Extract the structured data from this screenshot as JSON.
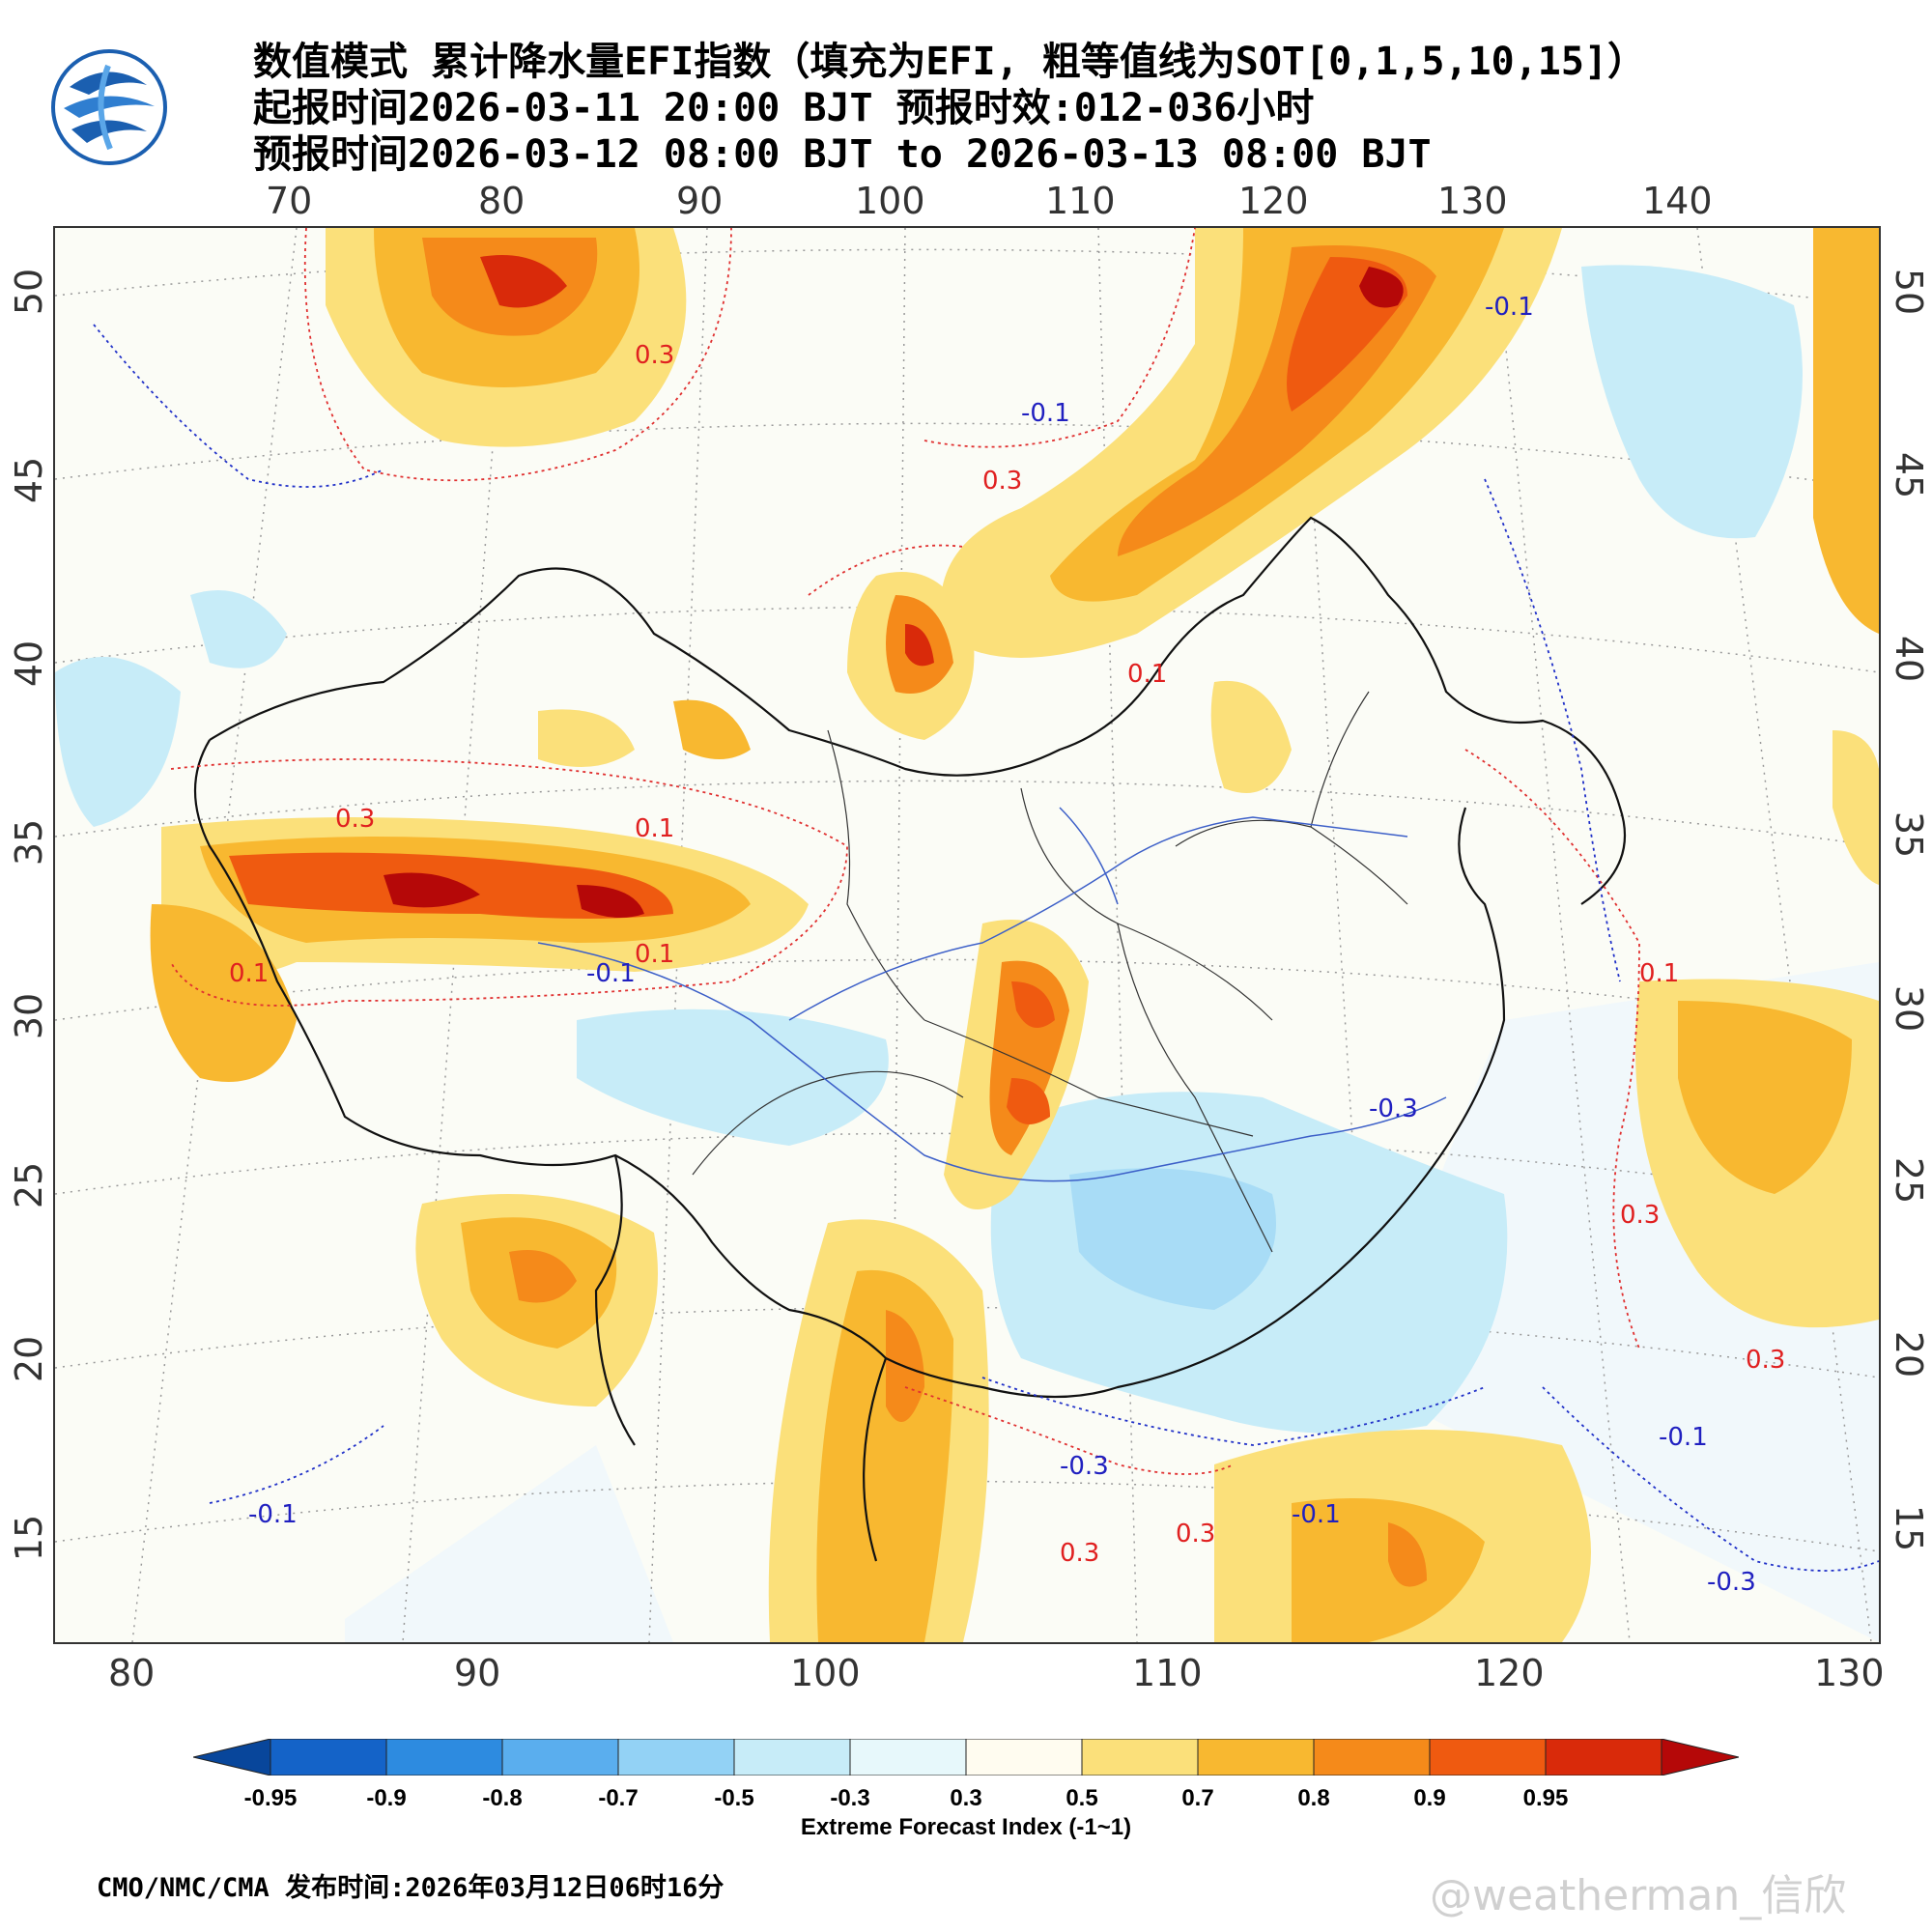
{
  "header": {
    "title_line1": "数值模式 累计降水量EFI指数（填充为EFI, 粗等值线为SOT[0,1,5,10,15]）",
    "title_line2": "起报时间2026-03-11 20:00 BJT 预报时效:012-036小时",
    "title_line3": "预报时间2026-03-12 08:00 BJT to 2026-03-13 08:00 BJT"
  },
  "map": {
    "top_lon_labels": [
      "70",
      "80",
      "90",
      "100",
      "110",
      "120",
      "130",
      "140"
    ],
    "bottom_lon_labels": [
      "80",
      "90",
      "100",
      "110",
      "120",
      "130"
    ],
    "left_lat_labels": [
      "50",
      "45",
      "40",
      "35",
      "30",
      "25",
      "20",
      "15"
    ],
    "right_lat_labels": [
      "50",
      "45",
      "40",
      "35",
      "30",
      "25",
      "20",
      "15"
    ],
    "contour_labels": [
      "0.1",
      "0.3",
      "-0.1",
      "-0.3"
    ]
  },
  "colorbar": {
    "title": "Extreme Forecast Index (-1~1)",
    "tick_labels": [
      "-0.95",
      "-0.9",
      "-0.8",
      "-0.7",
      "-0.5",
      "-0.3",
      "0.3",
      "0.5",
      "0.7",
      "0.8",
      "0.9",
      "0.95"
    ],
    "colors": [
      "#08469b",
      "#1463c8",
      "#2d8be0",
      "#5aaeee",
      "#93d2f5",
      "#c7ecf8",
      "#e7f8fb",
      "#fffcf0",
      "#fbe07a",
      "#f8b830",
      "#f58a1a",
      "#ef5a10",
      "#d92a0a",
      "#b50808"
    ]
  },
  "footer": {
    "issuer": "CMO/NMC/CMA 发布时间:2026年03月12日06时16分",
    "watermark": "@weatherman_信欣"
  }
}
